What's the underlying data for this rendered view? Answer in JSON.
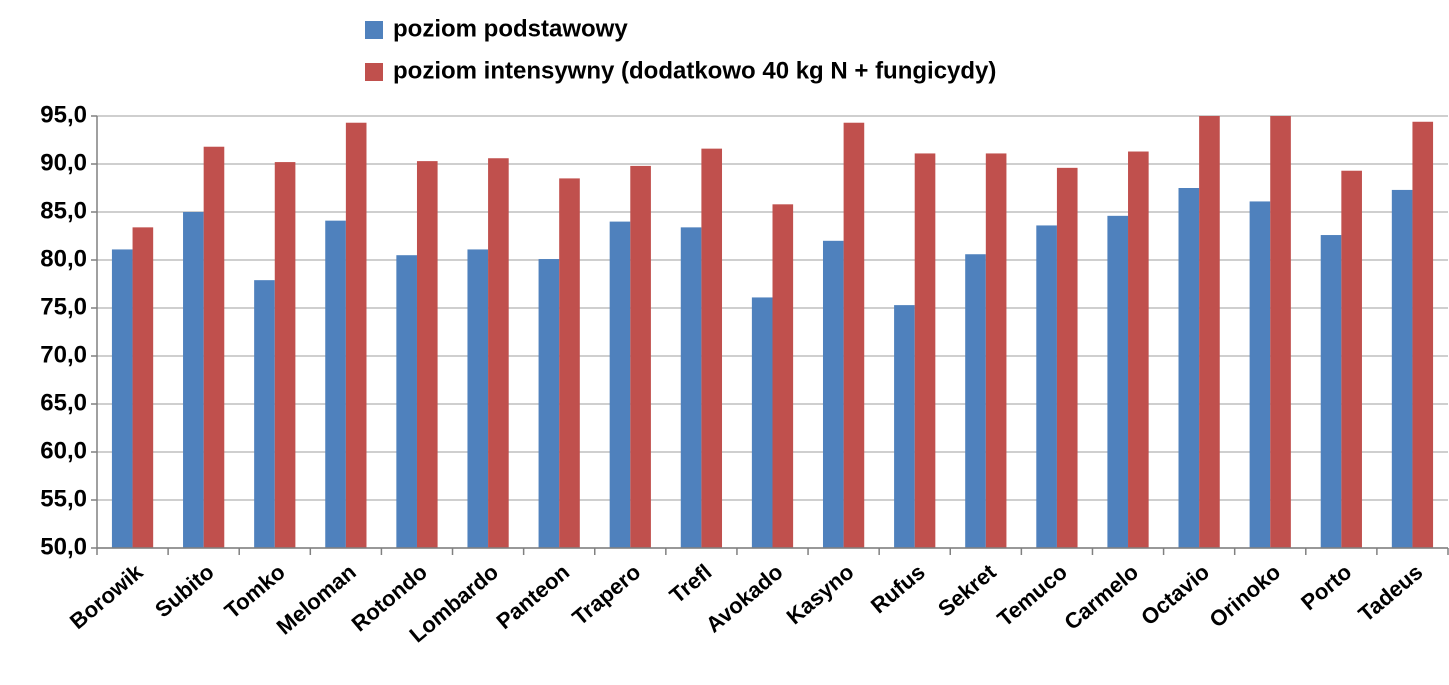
{
  "chart_data": {
    "type": "bar",
    "categories": [
      "Borowik",
      "Subito",
      "Tomko",
      "Meloman",
      "Rotondo",
      "Lombardo",
      "Panteon",
      "Trapero",
      "Trefl",
      "Avokado",
      "Kasyno",
      "Rufus",
      "Sekret",
      "Temuco",
      "Carmelo",
      "Octavio",
      "Orinoko",
      "Porto",
      "Tadeus"
    ],
    "series": [
      {
        "name": "poziom podstawowy",
        "color": "#4f81bd",
        "values": [
          81.1,
          85.0,
          77.9,
          84.1,
          80.5,
          81.1,
          80.1,
          84.0,
          83.4,
          76.1,
          82.0,
          75.3,
          80.6,
          83.6,
          84.6,
          87.5,
          86.1,
          82.6,
          87.3
        ]
      },
      {
        "name": "poziom intensywny (dodatkowo 40 kg N + fungicydy)",
        "color": "#c0504d",
        "values": [
          83.4,
          91.8,
          90.2,
          94.3,
          90.3,
          90.6,
          88.5,
          89.8,
          91.6,
          85.8,
          94.3,
          91.1,
          91.1,
          89.6,
          91.3,
          95.0,
          95.0,
          89.3,
          94.4
        ]
      }
    ],
    "ylim": [
      50,
      95
    ],
    "yticks": [
      {
        "value": 50,
        "label": "50,0"
      },
      {
        "value": 55,
        "label": "55,0"
      },
      {
        "value": 60,
        "label": "60,0"
      },
      {
        "value": 65,
        "label": "65,0"
      },
      {
        "value": 70,
        "label": "70,0"
      },
      {
        "value": 75,
        "label": "75,0"
      },
      {
        "value": 80,
        "label": "80,0"
      },
      {
        "value": 85,
        "label": "85,0"
      },
      {
        "value": 90,
        "label": "90,0"
      },
      {
        "value": 95,
        "label": "95,0"
      }
    ],
    "grid": true
  }
}
